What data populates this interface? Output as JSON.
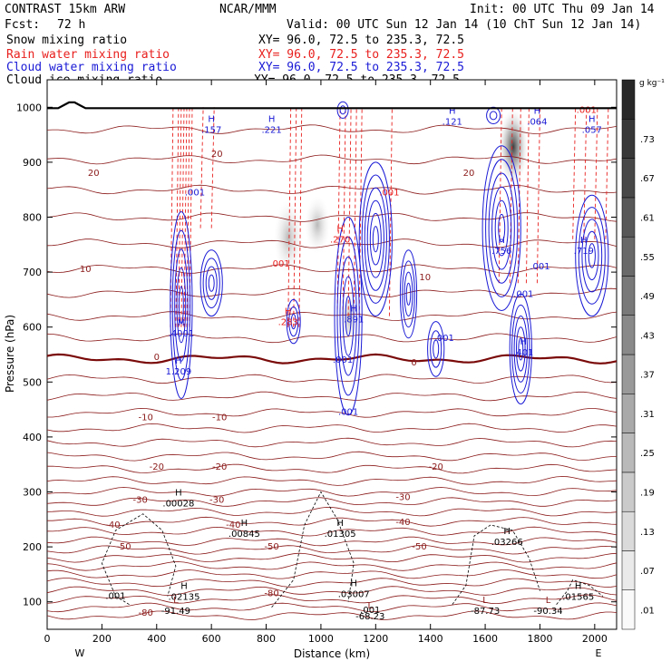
{
  "header": {
    "left_line1": "CONTRAST 15km ARW",
    "center_line1": "NCAR/MMM",
    "right_line1": "Init: 00 UTC Thu 09 Jan 14",
    "fcst_label": "Fcst:",
    "fcst_value": "72 h",
    "valid_line": "Valid: 00 UTC Sun 12 Jan 14 (10 ChT Sun 12 Jan 14)"
  },
  "fields": [
    {
      "name": "Snow mixing ratio",
      "xy": "XY=  96.0, 72.5 to 235.3, 72.5",
      "color": "#000000"
    },
    {
      "name": "Rain water mixing ratio",
      "xy": "XY=  96.0, 72.5 to 235.3, 72.5",
      "color": "#e8201e"
    },
    {
      "name": "Cloud water mixing ratio",
      "xy": "XY=  96.0, 72.5 to 235.3, 72.5",
      "color": "#1a1ad6"
    },
    {
      "name": "Cloud ice mixing ratio",
      "xy": "XY=  96.0, 72.5 to 235.3, 72.5",
      "color": "#000000"
    }
  ],
  "colors": {
    "temperature_contours": "#8b1a1a",
    "freezing_level": "#7a0a0a",
    "cloud_water": "#1a1ad6",
    "rain_water": "#e8201e",
    "cloud_ice": "#000000",
    "snow_shading": "#555555",
    "terrain": "#000000"
  },
  "chart_data": {
    "type": "vertical_cross_section",
    "xlabel": "Distance (km)",
    "ylabel": "Pressure (hPa)",
    "xlim": [
      0,
      2080
    ],
    "ylim": [
      1050,
      50
    ],
    "x_ticks": [
      0,
      200,
      400,
      600,
      800,
      1000,
      1200,
      1400,
      1600,
      1800,
      2000
    ],
    "y_ticks": [
      100,
      200,
      300,
      400,
      500,
      600,
      700,
      800,
      900,
      1000
    ],
    "x_end_labels": {
      "left": "W",
      "right": "E"
    },
    "colorbar": {
      "unit": "g kg⁻¹",
      "levels": [
        ".01",
        ".07",
        ".13",
        ".19",
        ".25",
        ".31",
        ".37",
        ".43",
        ".49",
        ".55",
        ".61",
        ".67",
        ".73"
      ]
    },
    "temperature_contour_labels": [
      {
        "text": "-80",
        "x": 360,
        "p": 80
      },
      {
        "text": "-80",
        "x": 820,
        "p": 115
      },
      {
        "text": "-50",
        "x": 280,
        "p": 200
      },
      {
        "text": "-50",
        "x": 820,
        "p": 200
      },
      {
        "text": "-50",
        "x": 1360,
        "p": 200
      },
      {
        "text": "-40",
        "x": 240,
        "p": 240
      },
      {
        "text": "-40",
        "x": 680,
        "p": 240
      },
      {
        "text": "-40",
        "x": 1300,
        "p": 245
      },
      {
        "text": "-30",
        "x": 340,
        "p": 285
      },
      {
        "text": "-30",
        "x": 620,
        "p": 285
      },
      {
        "text": "-30",
        "x": 1300,
        "p": 290
      },
      {
        "text": "-20",
        "x": 400,
        "p": 345
      },
      {
        "text": "-20",
        "x": 630,
        "p": 345
      },
      {
        "text": "-20",
        "x": 1420,
        "p": 345
      },
      {
        "text": "-10",
        "x": 360,
        "p": 435
      },
      {
        "text": "-10",
        "x": 630,
        "p": 435
      },
      {
        "text": "0",
        "x": 400,
        "p": 545
      },
      {
        "text": "0",
        "x": 1340,
        "p": 535
      },
      {
        "text": "10",
        "x": 140,
        "p": 705
      },
      {
        "text": "10",
        "x": 1380,
        "p": 690
      },
      {
        "text": "20",
        "x": 170,
        "p": 880
      },
      {
        "text": "20",
        "x": 620,
        "p": 915
      },
      {
        "text": "20",
        "x": 1540,
        "p": 880
      }
    ],
    "temperature_levels_pressure": [
      75,
      90,
      105,
      120,
      135,
      150,
      165,
      180,
      195,
      210,
      228,
      246,
      264,
      282,
      300,
      320,
      342,
      365,
      390,
      416,
      444,
      474,
      506,
      542,
      580,
      620,
      662,
      706,
      752,
      800,
      850,
      905,
      960
    ],
    "freezing_level_pressure": 542,
    "terrain_pressure": 1000,
    "high_labels": [
      {
        "text": ".02135",
        "x": 500,
        "p": 110,
        "color": "#000000"
      },
      {
        "text": ".00845",
        "x": 720,
        "p": 225,
        "color": "#000000"
      },
      {
        "text": ".00028",
        "x": 480,
        "p": 280,
        "color": "#000000"
      },
      {
        "text": ".01305",
        "x": 1070,
        "p": 225,
        "color": "#000000"
      },
      {
        "text": ".03007",
        "x": 1120,
        "p": 115,
        "color": "#000000"
      },
      {
        "text": ".03266",
        "x": 1680,
        "p": 210,
        "color": "#000000"
      },
      {
        "text": ".01565",
        "x": 1940,
        "p": 110,
        "color": "#000000"
      },
      {
        "text": "1.209",
        "x": 480,
        "p": 520,
        "color": "#1a1ad6"
      },
      {
        "text": ".4001",
        "x": 490,
        "p": 590,
        "color": "#1a1ad6"
      },
      {
        "text": ".891",
        "x": 1120,
        "p": 615,
        "color": "#1a1ad6"
      },
      {
        "text": ".401",
        "x": 1740,
        "p": 555,
        "color": "#1a1ad6"
      },
      {
        "text": ".756",
        "x": 1660,
        "p": 740,
        "color": "#1a1ad6"
      },
      {
        "text": ".719",
        "x": 1960,
        "p": 740,
        "color": "#1a1ad6"
      },
      {
        "text": ".157",
        "x": 600,
        "p": 960,
        "color": "#1a1ad6"
      },
      {
        "text": ".221",
        "x": 820,
        "p": 960,
        "color": "#1a1ad6"
      },
      {
        "text": ".121",
        "x": 1480,
        "p": 975,
        "color": "#1a1ad6"
      },
      {
        "text": ".064",
        "x": 1790,
        "p": 975,
        "color": "#1a1ad6"
      },
      {
        "text": ".057",
        "x": 1990,
        "p": 960,
        "color": "#1a1ad6"
      },
      {
        "text": ".270",
        "x": 1070,
        "p": 760,
        "color": "#e8201e"
      },
      {
        "text": ".283",
        "x": 880,
        "p": 610,
        "color": "#e8201e"
      }
    ],
    "low_labels": [
      {
        "text": "-91.49",
        "x": 470,
        "p": 85
      },
      {
        "text": "-68.23",
        "x": 1180,
        "p": 75
      },
      {
        "text": "-87.73",
        "x": 1600,
        "p": 85
      },
      {
        "text": "-90.34",
        "x": 1830,
        "p": 85
      }
    ],
    "small_labels": [
      {
        "text": ".001",
        "x": 250,
        "p": 105,
        "color": "#000000"
      },
      {
        "text": ".001",
        "x": 1180,
        "p": 80,
        "color": "#000000"
      },
      {
        "text": ".001",
        "x": 1100,
        "p": 440,
        "color": "#1a1ad6"
      },
      {
        "text": ".001",
        "x": 1080,
        "p": 535,
        "color": "#1a1ad6"
      },
      {
        "text": ".001",
        "x": 1450,
        "p": 575,
        "color": "#1a1ad6"
      },
      {
        "text": ".001",
        "x": 1740,
        "p": 655,
        "color": "#1a1ad6"
      },
      {
        "text": ".001",
        "x": 1800,
        "p": 705,
        "color": "#1a1ad6"
      },
      {
        "text": ".001",
        "x": 540,
        "p": 840,
        "color": "#1a1ad6"
      },
      {
        "text": ".001",
        "x": 1250,
        "p": 840,
        "color": "#e8201e"
      },
      {
        "text": ".001",
        "x": 850,
        "p": 710,
        "color": "#e8201e"
      },
      {
        "text": ".001",
        "x": 1970,
        "p": 990,
        "color": "#e8201e"
      }
    ]
  }
}
